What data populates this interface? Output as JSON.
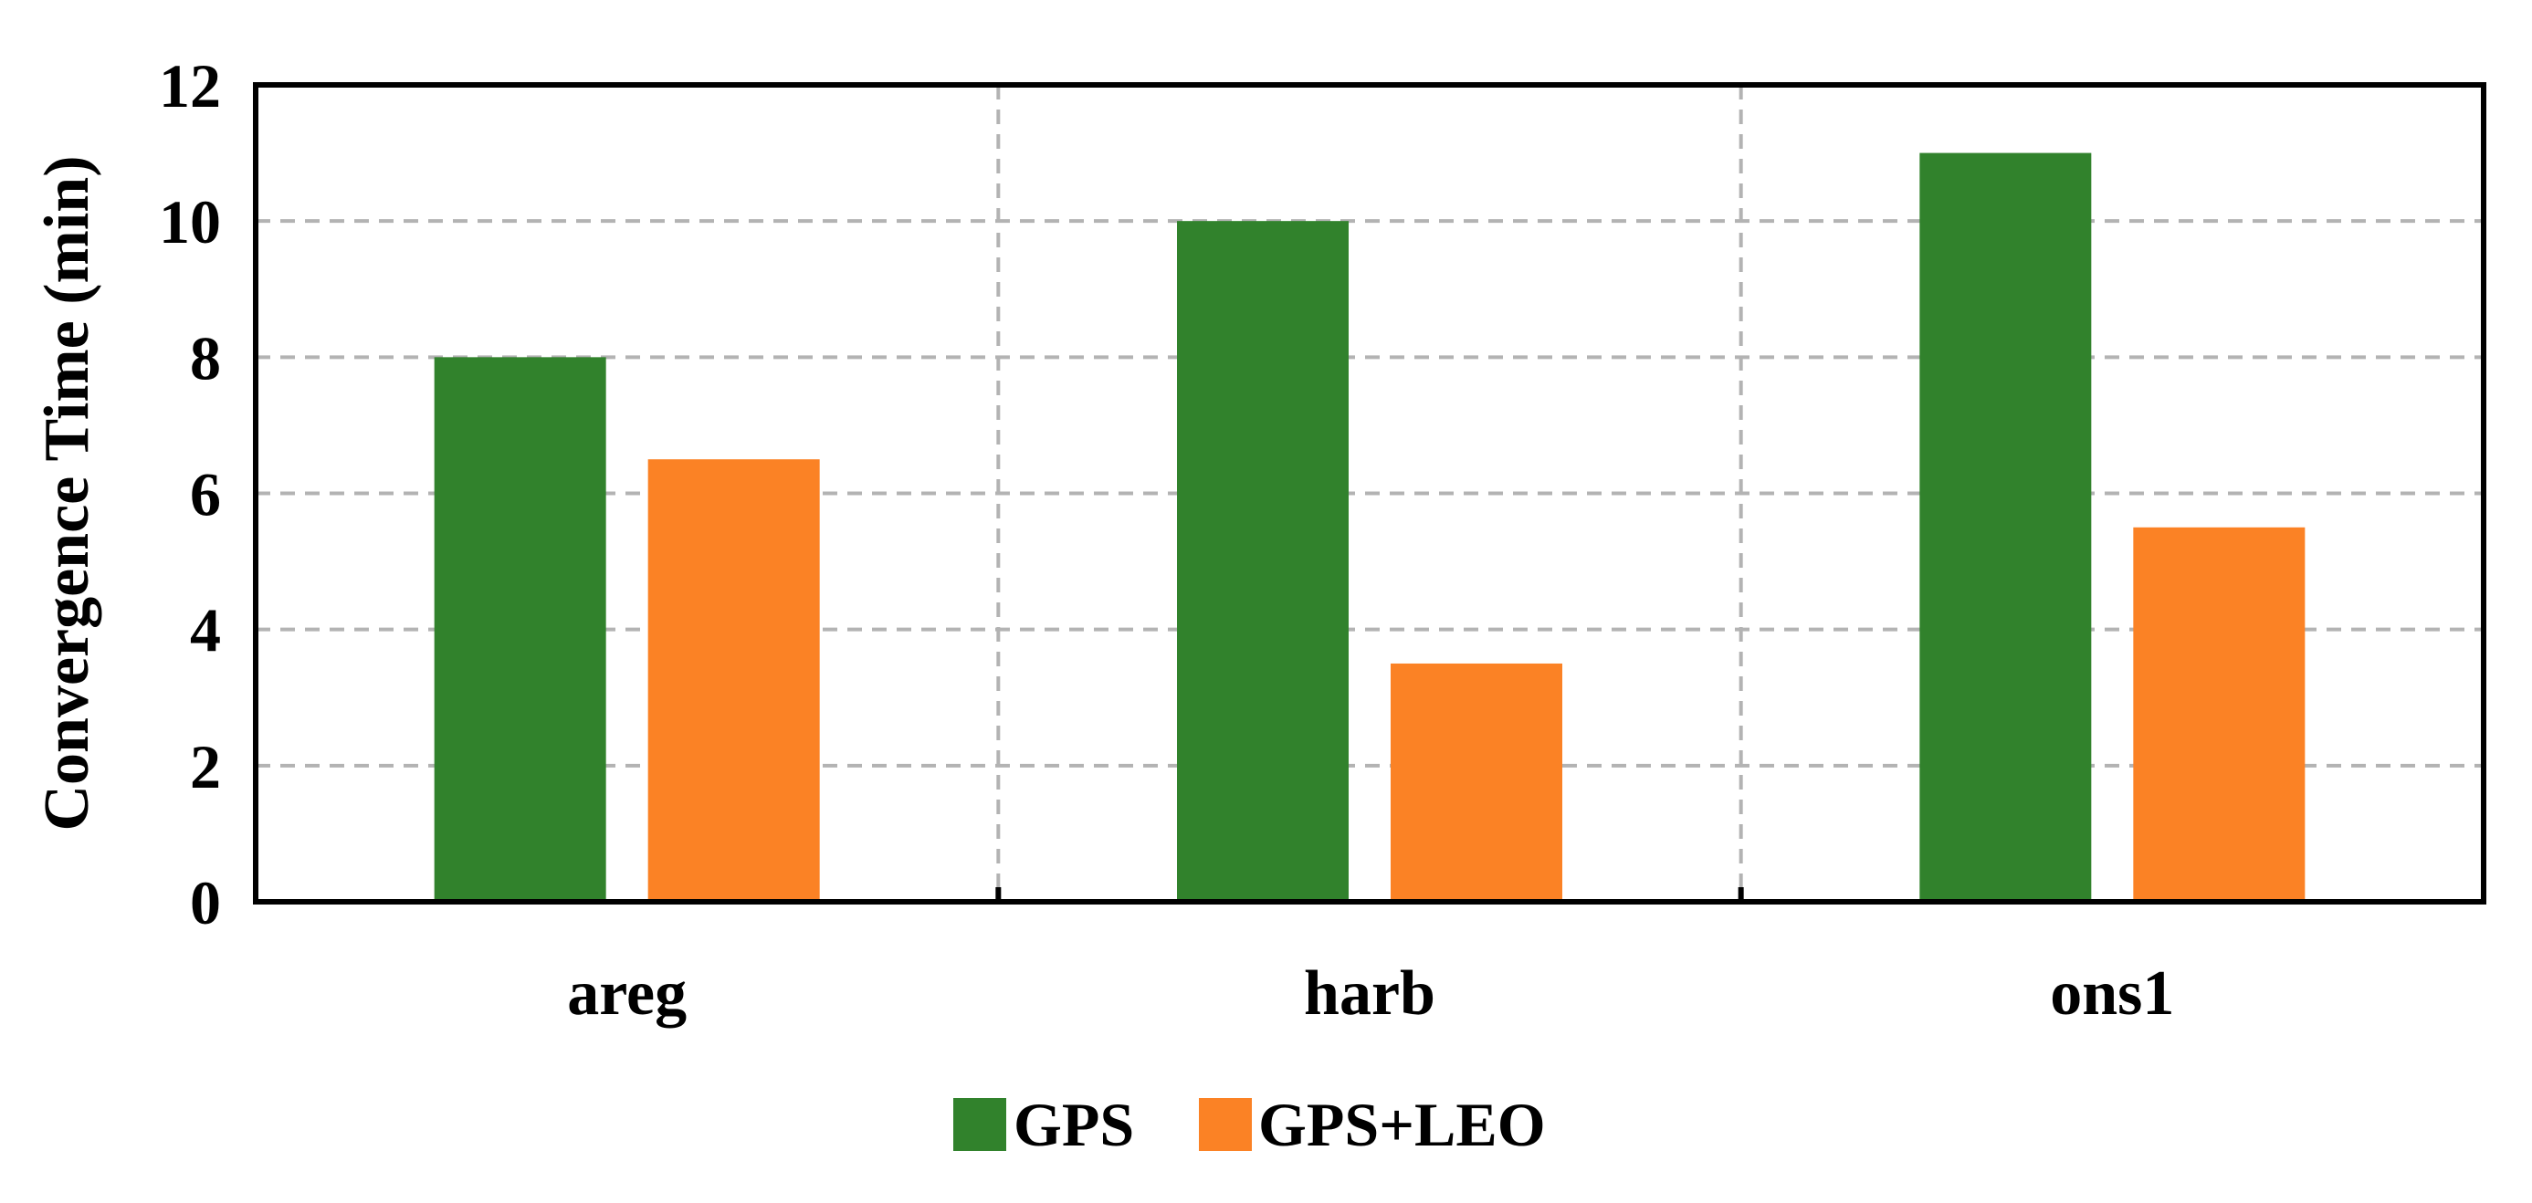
{
  "chart_data": {
    "type": "bar",
    "title": "",
    "xlabel": "",
    "ylabel": "Convergence Time (min)",
    "categories": [
      "areg",
      "harb",
      "ons1"
    ],
    "series": [
      {
        "name": "GPS",
        "color": "#31822C",
        "values": [
          8.0,
          10.0,
          11.0
        ]
      },
      {
        "name": "GPS+LEO",
        "color": "#FB8225",
        "values": [
          6.5,
          3.5,
          5.5
        ]
      }
    ],
    "ylim": [
      0,
      12
    ],
    "yticks": [
      "0",
      "2",
      "4",
      "6",
      "8",
      "10",
      "12"
    ],
    "grid": true,
    "legend_position": "bottom-center"
  }
}
